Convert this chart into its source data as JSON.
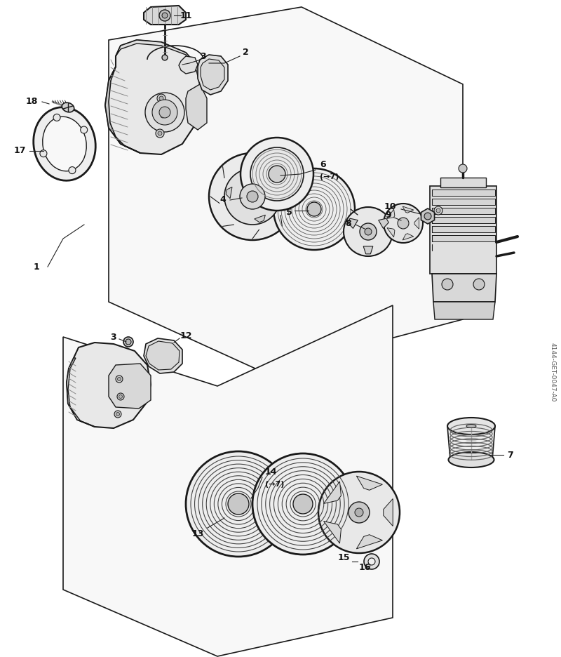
{
  "background_color": "#ffffff",
  "line_color": "#1a1a1a",
  "label_color": "#111111",
  "font_size_labels": 9,
  "watermark": "4144-GET-0047-A0",
  "label_6": "6\n(→7)",
  "label_14": "14\n(→7)",
  "fig_w": 8.0,
  "fig_h": 9.36,
  "dpi": 100
}
